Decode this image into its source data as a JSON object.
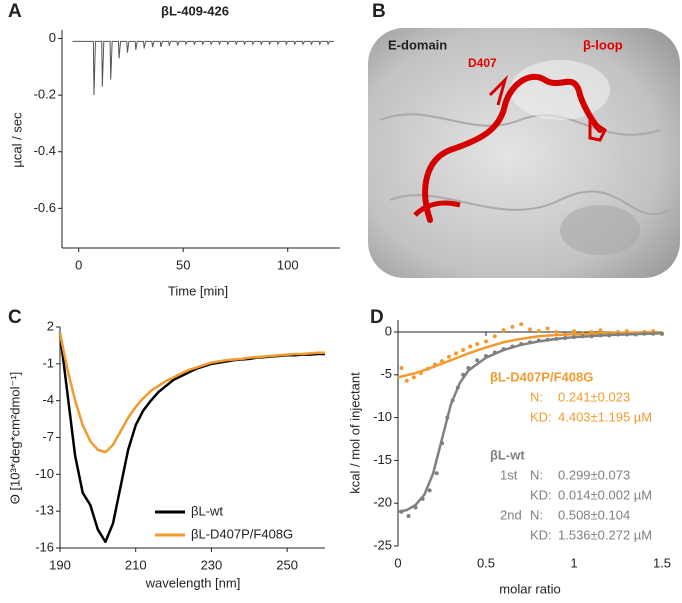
{
  "panel_labels": [
    "A",
    "B",
    "C",
    "D"
  ],
  "image_panel": {
    "labels": [
      "E-domain",
      "D407",
      "β-loop"
    ]
  },
  "chart_data": [
    {
      "type": "line",
      "title": "βL-409-426",
      "x_label": "Time [min]",
      "y_label": "µcal / sec",
      "color": "#555555",
      "xlim": [
        -8,
        125
      ],
      "xticks": [
        0,
        50,
        100
      ],
      "ylim": [
        -0.74,
        0.03
      ],
      "yticks": [
        0,
        -0.2,
        -0.4,
        -0.6
      ],
      "x": [
        -3,
        7,
        7.3,
        8,
        11,
        11.3,
        12,
        15,
        15.3,
        16,
        19,
        19.3,
        20,
        23,
        23.3,
        24,
        27,
        27.3,
        28,
        31,
        31.3,
        32,
        35,
        35.3,
        36,
        39,
        39.3,
        40,
        43,
        43.3,
        44,
        47,
        47.3,
        48,
        51,
        51.3,
        52,
        55,
        55.3,
        56,
        59,
        59.3,
        60,
        63,
        63.3,
        64,
        67,
        67.3,
        68,
        71,
        71.3,
        72,
        75,
        75.3,
        76,
        79,
        79.3,
        80,
        83,
        83.3,
        84,
        87,
        87.3,
        88,
        91,
        91.3,
        92,
        95,
        95.3,
        96,
        99,
        99.3,
        100,
        103,
        103.3,
        104,
        107,
        107.3,
        108,
        111,
        111.3,
        112,
        115,
        115.3,
        116,
        119,
        119.3,
        120,
        122
      ],
      "values": [
        -0.01,
        -0.01,
        -0.2,
        -0.01,
        -0.01,
        -0.17,
        -0.01,
        -0.01,
        -0.145,
        -0.01,
        -0.01,
        -0.07,
        -0.01,
        -0.01,
        -0.05,
        -0.01,
        -0.01,
        -0.04,
        -0.01,
        -0.01,
        -0.035,
        -0.01,
        -0.01,
        -0.03,
        -0.01,
        -0.01,
        -0.03,
        -0.01,
        -0.01,
        -0.025,
        -0.01,
        -0.01,
        -0.025,
        -0.01,
        -0.01,
        -0.02,
        -0.01,
        -0.01,
        -0.02,
        -0.01,
        -0.01,
        -0.02,
        -0.01,
        -0.01,
        -0.02,
        -0.01,
        -0.01,
        -0.02,
        -0.01,
        -0.01,
        -0.02,
        -0.01,
        -0.01,
        -0.02,
        -0.01,
        -0.01,
        -0.02,
        -0.01,
        -0.01,
        -0.02,
        -0.01,
        -0.01,
        -0.02,
        -0.01,
        -0.01,
        -0.02,
        -0.01,
        -0.01,
        -0.02,
        -0.01,
        -0.01,
        -0.02,
        -0.01,
        -0.01,
        -0.02,
        -0.01,
        -0.01,
        -0.02,
        -0.01,
        -0.01,
        -0.02,
        -0.01,
        -0.01,
        -0.02,
        -0.01,
        -0.01,
        -0.02,
        -0.01,
        -0.01
      ]
    },
    {
      "type": "line",
      "x_label": "wavelength [nm]",
      "y_label": "Θ [10³*deg*cm²dmol⁻¹]",
      "xlim": [
        190,
        260
      ],
      "xticks": [
        190,
        210,
        230,
        250
      ],
      "ylim": [
        -16,
        2
      ],
      "yticks": [
        2,
        -1,
        -4,
        -7,
        -10,
        -13,
        -16
      ],
      "legend": "lower right",
      "x": [
        190,
        192,
        194,
        196,
        198,
        200,
        202,
        204,
        206,
        208,
        210,
        212,
        214,
        216,
        218,
        220,
        222,
        224,
        226,
        228,
        230,
        232,
        234,
        236,
        238,
        240,
        242,
        244,
        246,
        248,
        250,
        252,
        254,
        256,
        258,
        260
      ],
      "series": [
        {
          "name": "βL-wt",
          "color": "#000000",
          "values": [
            1.5,
            -3.5,
            -8.5,
            -11.5,
            -12.5,
            -14.5,
            -15.5,
            -14,
            -11,
            -8,
            -6,
            -4.8,
            -4,
            -3.3,
            -2.8,
            -2.3,
            -2,
            -1.7,
            -1.4,
            -1.2,
            -1,
            -0.9,
            -0.8,
            -0.7,
            -0.65,
            -0.6,
            -0.5,
            -0.45,
            -0.4,
            -0.35,
            -0.3,
            -0.3,
            -0.25,
            -0.25,
            -0.2,
            -0.2
          ]
        },
        {
          "name": "βL-D407P/F408G",
          "color": "#f39a2e",
          "values": [
            1.5,
            -1.5,
            -4,
            -6,
            -7.3,
            -8,
            -8.2,
            -7.6,
            -6.5,
            -5.4,
            -4.5,
            -3.8,
            -3.2,
            -2.8,
            -2.4,
            -2.1,
            -1.8,
            -1.5,
            -1.3,
            -1.1,
            -0.9,
            -0.8,
            -0.7,
            -0.65,
            -0.6,
            -0.5,
            -0.45,
            -0.4,
            -0.35,
            -0.3,
            -0.25,
            -0.2,
            -0.2,
            -0.15,
            -0.1,
            -0.1
          ]
        }
      ]
    },
    {
      "type": "scatter",
      "x_label": "molar ratio",
      "y_label": "kcal / mol of injectant",
      "xlim": [
        0,
        1.5
      ],
      "xticks": [
        0,
        0.5,
        1,
        1.5
      ],
      "ylim": [
        -25,
        1.4
      ],
      "yticks": [
        0,
        -5,
        -10,
        -15,
        -20,
        -25
      ],
      "series": [
        {
          "name": "βL-D407P/F408G",
          "color": "#f39a2e",
          "x": [
            0.02,
            0.05,
            0.09,
            0.13,
            0.17,
            0.21,
            0.25,
            0.29,
            0.33,
            0.37,
            0.41,
            0.45,
            0.5,
            0.55,
            0.6,
            0.65,
            0.7,
            0.75,
            0.8,
            0.85,
            0.9,
            0.95,
            1.0,
            1.05,
            1.1,
            1.15,
            1.2,
            1.25,
            1.3,
            1.35,
            1.4,
            1.45,
            1.5
          ],
          "values": [
            -4.2,
            -5.7,
            -5.3,
            -4.8,
            -4.3,
            -3.8,
            -3.4,
            -2.9,
            -2.5,
            -2.1,
            -1.7,
            -1.4,
            -1.1,
            -0.5,
            0.2,
            0.6,
            0.9,
            0.3,
            0.1,
            0.4,
            0.0,
            -0.3,
            0.1,
            -0.2,
            0.0,
            0.2,
            -0.1,
            0.0,
            0.1,
            -0.2,
            0.0,
            0.1,
            -0.2
          ],
          "fit_x": [
            0,
            0.1,
            0.2,
            0.3,
            0.4,
            0.5,
            0.6,
            0.7,
            0.8,
            0.9,
            1.0,
            1.1,
            1.2,
            1.3,
            1.4,
            1.5
          ],
          "fit_values": [
            -5.3,
            -4.8,
            -4.1,
            -3.3,
            -2.5,
            -1.8,
            -1.2,
            -0.8,
            -0.5,
            -0.35,
            -0.25,
            -0.18,
            -0.12,
            -0.08,
            -0.05,
            -0.03
          ],
          "stats": [
            {
              "label": "N:",
              "value": "0.241±0.023"
            },
            {
              "label": "KD:",
              "value": "4.403±1.195 µM"
            }
          ]
        },
        {
          "name": "βL-wt",
          "color": "#808080",
          "x": [
            0.02,
            0.06,
            0.1,
            0.14,
            0.18,
            0.22,
            0.25,
            0.28,
            0.31,
            0.34,
            0.37,
            0.4,
            0.45,
            0.5,
            0.55,
            0.6,
            0.65,
            0.7,
            0.75,
            0.8,
            0.85,
            0.9,
            0.95,
            1.0,
            1.05,
            1.1,
            1.15,
            1.2,
            1.25,
            1.3,
            1.35,
            1.4,
            1.45,
            1.5
          ],
          "values": [
            -21,
            -21.5,
            -20.5,
            -19.5,
            -18.5,
            -16.5,
            -13,
            -10,
            -8,
            -6.5,
            -5,
            -4.2,
            -3.3,
            -2.8,
            -2.4,
            -2,
            -1.7,
            -1.4,
            -1.2,
            -1,
            -0.9,
            -0.8,
            -0.7,
            -0.6,
            -0.5,
            -0.5,
            -0.4,
            -0.4,
            -0.3,
            -0.3,
            -0.3,
            -0.2,
            -0.2,
            -0.2
          ],
          "fit_x": [
            0,
            0.05,
            0.1,
            0.15,
            0.2,
            0.25,
            0.3,
            0.35,
            0.4,
            0.5,
            0.6,
            0.7,
            0.8,
            0.9,
            1.0,
            1.2,
            1.5
          ],
          "fit_values": [
            -21,
            -20.8,
            -20.2,
            -19,
            -16.5,
            -12.5,
            -8.5,
            -6,
            -4.5,
            -3,
            -2.1,
            -1.5,
            -1.1,
            -0.8,
            -0.6,
            -0.35,
            -0.15
          ],
          "stats": [
            {
              "prefix": "1st",
              "label": "N:",
              "value": "0.299±0.073"
            },
            {
              "label": "KD:",
              "value": "0.014±0.002 µM"
            },
            {
              "prefix": "2nd",
              "label": "N:",
              "value": "0.508±0.104"
            },
            {
              "label": "KD:",
              "value": "1.536±0.272 µM"
            }
          ]
        }
      ]
    }
  ]
}
